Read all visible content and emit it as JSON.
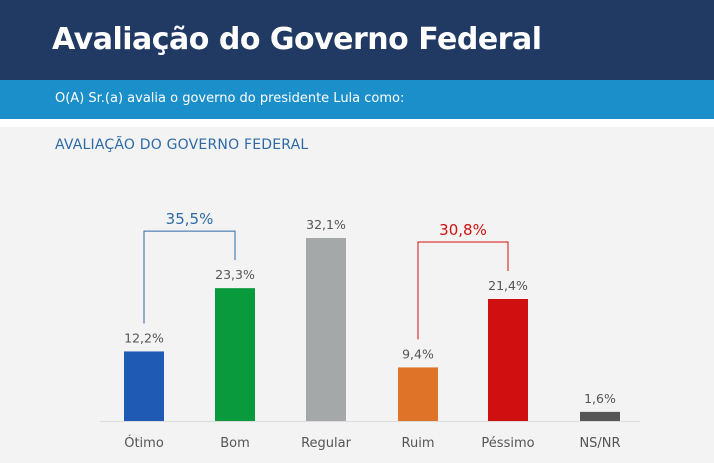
{
  "header": {
    "title": "Avaliação do Governo Federal"
  },
  "subheader": {
    "question": "O(A) Sr.(a) avalia o governo do presidente Lula como:"
  },
  "chart_data": {
    "type": "bar",
    "title": "AVALIAÇÃO DO GOVERNO FEDERAL",
    "categories": [
      "Ótimo",
      "Bom",
      "Regular",
      "Ruim",
      "Péssimo",
      "NS/NR"
    ],
    "values": [
      12.2,
      23.3,
      32.1,
      9.4,
      21.4,
      1.6
    ],
    "value_labels": [
      "12,2%",
      "23,3%",
      "32,1%",
      "9,4%",
      "21,4%",
      "1,6%"
    ],
    "colors": [
      "#1f5ab5",
      "#0a9a3e",
      "#a5a8a8",
      "#df7328",
      "#d01010",
      "#565656"
    ],
    "groups": [
      {
        "label": "35,5%",
        "from": 0,
        "to": 1,
        "color": "#2d6aa5"
      },
      {
        "label": "30,8%",
        "from": 3,
        "to": 4,
        "color": "#d01010"
      }
    ],
    "xlabel": "",
    "ylabel": "",
    "ylim": [
      0,
      32.1
    ],
    "grid": false,
    "legend": "none"
  }
}
